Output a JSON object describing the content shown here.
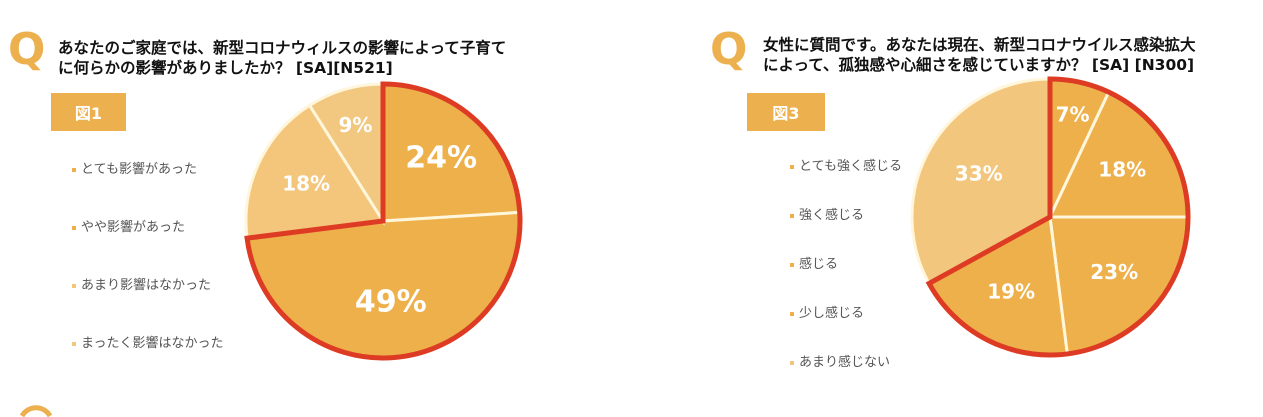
{
  "chart_data": [
    {
      "type": "pie",
      "question_mark": "Q",
      "title_lines": [
        "あなたのご家庭では、新型コロナウィルスの影響によって子育て",
        "に何らかの影響がありましたか？ [SA][N521]"
      ],
      "figure_label": "図1",
      "categories": [
        "とても影響があった",
        "やや影響があった",
        "あまり影響はなかった",
        "まったく影響はなかった"
      ],
      "values": [
        24,
        49,
        18,
        9
      ],
      "data_labels": [
        "24%",
        "49%",
        "18%",
        "9%"
      ],
      "colors": [
        "#EDB04A",
        "#EDB04A",
        "#F3C67C",
        "#F2C77F"
      ],
      "highlighted": [
        0,
        1
      ],
      "highlight_color": "#DE3B24"
    },
    {
      "type": "pie",
      "question_mark": "Q",
      "title_lines": [
        "女性に質問です。あなたは現在、新型コロナウイルス感染拡大",
        "によって、孤独感や心細さを感じていますか？ [SA] [N300]"
      ],
      "figure_label": "図3",
      "categories": [
        "とても強く感じる",
        "強く感じる",
        "感じる",
        "少し感じる",
        "あまり感じない"
      ],
      "values": [
        7,
        18,
        23,
        19,
        33
      ],
      "data_labels": [
        "7%",
        "18%",
        "23%",
        "19%",
        "33%"
      ],
      "colors": [
        "#EDB04A",
        "#EDB04A",
        "#EDB04A",
        "#EDB04A",
        "#F2C67D"
      ],
      "highlighted": [
        0,
        1,
        2,
        3
      ],
      "highlight_color": "#DE3B24"
    }
  ]
}
